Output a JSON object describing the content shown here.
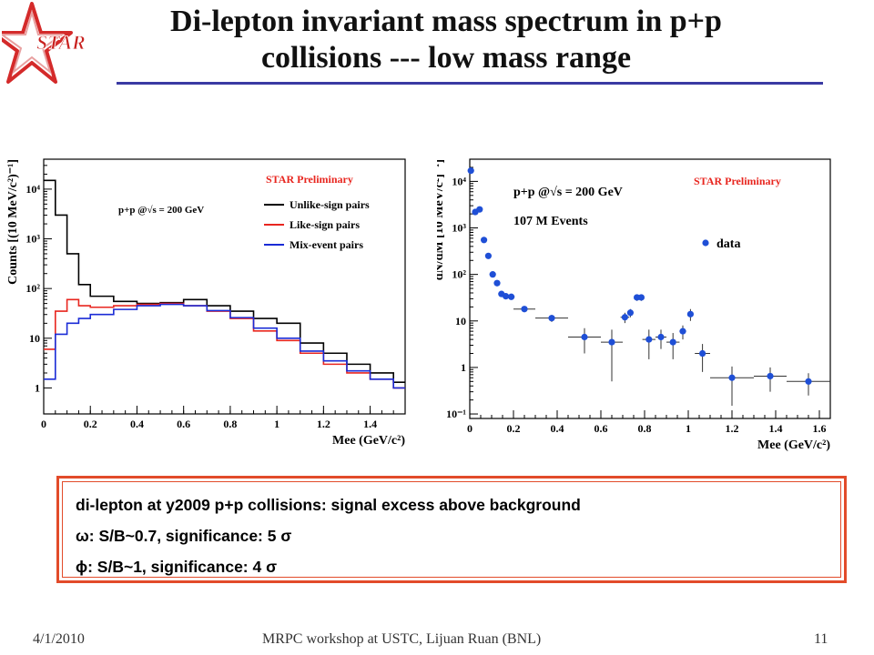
{
  "slide": {
    "title_line1": "Di-lepton invariant mass spectrum in p+p",
    "title_line2": "collisions --- low mass range",
    "logo_text": "STAR",
    "footer_date": "4/1/2010",
    "footer_text": "MRPC workshop at USTC, Lijuan Ruan (BNL)",
    "footer_page": "11",
    "accent_color": "#e24b2a",
    "rule_color": "#3a3aa3"
  },
  "notes": [
    "di-lepton at y2009 p+p collisions: signal excess above background",
    "ω: S/B~0.7, significance: 5 σ",
    "ϕ: S/B~1, significance: 4 σ"
  ],
  "chart_data": [
    {
      "type": "line",
      "ylabel": "Counts [(10 MeV/c²)⁻¹]",
      "xlabel": "Mee (GeV/c²)",
      "xlim": [
        0,
        1.55
      ],
      "ylim": [
        0.3,
        40000
      ],
      "yscale": "log",
      "x_ticks": [
        "0",
        "0.2",
        "0.4",
        "0.6",
        "0.8",
        "1",
        "1.2",
        "1.4"
      ],
      "y_ticks": [
        "1",
        "10",
        "10²",
        "10³",
        "10⁴"
      ],
      "annotations": [
        "STAR Preliminary",
        "p+p @√s = 200 GeV"
      ],
      "legend_position": "top-right",
      "x": [
        0.0,
        0.05,
        0.1,
        0.15,
        0.2,
        0.3,
        0.4,
        0.5,
        0.6,
        0.7,
        0.8,
        0.9,
        1.0,
        1.1,
        1.2,
        1.3,
        1.4,
        1.5
      ],
      "series": [
        {
          "name": "Unlike-sign pairs",
          "color": "#000000",
          "values": [
            15000,
            3000,
            500,
            120,
            70,
            55,
            50,
            52,
            60,
            45,
            35,
            25,
            20,
            8,
            5,
            3,
            2,
            1.3
          ]
        },
        {
          "name": "Like-sign pairs",
          "color": "#e8261f",
          "values": [
            6,
            35,
            60,
            45,
            42,
            45,
            48,
            50,
            45,
            35,
            25,
            14,
            9,
            5,
            3,
            2,
            1.5,
            1
          ]
        },
        {
          "name": "Mix-event pairs",
          "color": "#1a2bd6",
          "values": [
            1.5,
            12,
            20,
            25,
            30,
            38,
            45,
            48,
            45,
            36,
            26,
            16,
            10,
            5.5,
            3.5,
            2.2,
            1.5,
            1
          ]
        }
      ]
    },
    {
      "type": "scatter",
      "ylabel": "dN/dM [10 MeV/c²]⁻¹]",
      "xlabel": "Mee (GeV/c²)",
      "xlim": [
        0,
        1.65
      ],
      "ylim": [
        0.08,
        30000
      ],
      "yscale": "log",
      "x_ticks": [
        "0",
        "0.2",
        "0.4",
        "0.6",
        "0.8",
        "1",
        "1.2",
        "1.4",
        "1.6"
      ],
      "y_ticks": [
        "10⁻¹",
        "1",
        "10",
        "10²",
        "10³",
        "10⁴"
      ],
      "annotations": [
        "STAR Preliminary",
        "p+p @√s = 200 GeV",
        "107 M Events"
      ],
      "legend_position": "top-right",
      "series": [
        {
          "name": "data",
          "color": "#1f4fd6",
          "points": [
            {
              "x": 0.005,
              "y": 17000,
              "xerr": 0.005,
              "yerr": 0
            },
            {
              "x": 0.025,
              "y": 2200,
              "xerr": 0.005,
              "yerr": 0
            },
            {
              "x": 0.045,
              "y": 2500,
              "xerr": 0.005,
              "yerr": 0
            },
            {
              "x": 0.065,
              "y": 550,
              "xerr": 0.005,
              "yerr": 0
            },
            {
              "x": 0.085,
              "y": 250,
              "xerr": 0.005,
              "yerr": 0
            },
            {
              "x": 0.105,
              "y": 100,
              "xerr": 0.005,
              "yerr": 0
            },
            {
              "x": 0.125,
              "y": 65,
              "xerr": 0.005,
              "yerr": 0
            },
            {
              "x": 0.145,
              "y": 38,
              "xerr": 0.005,
              "yerr": 0
            },
            {
              "x": 0.165,
              "y": 34,
              "xerr": 0.01,
              "yerr": 0
            },
            {
              "x": 0.19,
              "y": 33,
              "xerr": 0.015,
              "yerr": 0
            },
            {
              "x": 0.25,
              "y": 18,
              "xerr": 0.05,
              "yerr": 2
            },
            {
              "x": 0.375,
              "y": 11.5,
              "xerr": 0.075,
              "yerr": 2
            },
            {
              "x": 0.525,
              "y": 4.5,
              "xerr": 0.075,
              "yerr": 2.5
            },
            {
              "x": 0.65,
              "y": 3.5,
              "xerr": 0.05,
              "yerr": 3
            },
            {
              "x": 0.71,
              "y": 12,
              "xerr": 0.02,
              "yerr": 3
            },
            {
              "x": 0.735,
              "y": 15,
              "xerr": 0.01,
              "yerr": 3
            },
            {
              "x": 0.765,
              "y": 32,
              "xerr": 0.01,
              "yerr": 5
            },
            {
              "x": 0.785,
              "y": 32,
              "xerr": 0.01,
              "yerr": 5
            },
            {
              "x": 0.82,
              "y": 4,
              "xerr": 0.03,
              "yerr": 2.5
            },
            {
              "x": 0.875,
              "y": 4.5,
              "xerr": 0.025,
              "yerr": 2
            },
            {
              "x": 0.93,
              "y": 3.5,
              "xerr": 0.03,
              "yerr": 2
            },
            {
              "x": 0.975,
              "y": 6,
              "xerr": 0.015,
              "yerr": 2
            },
            {
              "x": 1.01,
              "y": 14,
              "xerr": 0.01,
              "yerr": 4
            },
            {
              "x": 1.065,
              "y": 2,
              "xerr": 0.035,
              "yerr": 1.2
            },
            {
              "x": 1.2,
              "y": 0.6,
              "xerr": 0.1,
              "yerr": 0.45
            },
            {
              "x": 1.375,
              "y": 0.65,
              "xerr": 0.075,
              "yerr": 0.35
            },
            {
              "x": 1.55,
              "y": 0.5,
              "xerr": 0.1,
              "yerr": 0.25
            }
          ]
        }
      ]
    }
  ]
}
